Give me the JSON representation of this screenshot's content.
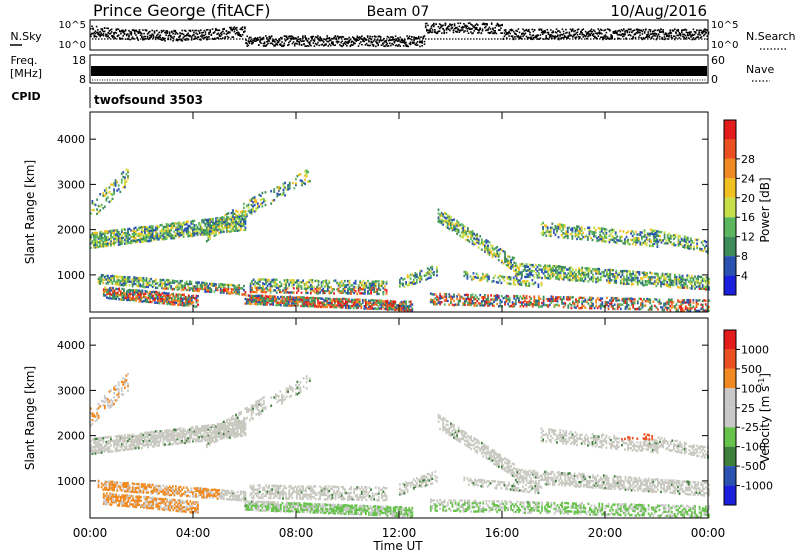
{
  "header": {
    "station": "Prince George (fitACF)",
    "beam": "Beam 07",
    "date": "10/Aug/2016"
  },
  "panels": {
    "nsky": {
      "left_label": "N.Sky",
      "right_label": "N.Search",
      "left_ticks": [
        "10^5",
        "10^0"
      ],
      "right_ticks": [
        "10^5",
        "10^0"
      ]
    },
    "freq": {
      "left_label_line1": "Freq.",
      "left_label_line2": "[MHz]",
      "right_label": "Nave",
      "left_ticks": [
        "18",
        "8"
      ],
      "right_ticks": [
        "60",
        "0"
      ]
    },
    "cpid": {
      "left_label": "CPID",
      "value": "twofsound 3503"
    }
  },
  "x_axis": {
    "title": "Time UT",
    "ticks": [
      "00:00",
      "04:00",
      "08:00",
      "12:00",
      "16:00",
      "20:00",
      "00:00"
    ]
  },
  "colors": {
    "power_scale": [
      "#1a20dc",
      "#2a52b0",
      "#3e8c5a",
      "#5cb65e",
      "#c7e04a",
      "#f0c020",
      "#ee8a20",
      "#ec5020",
      "#e41b1b"
    ],
    "velocity_scale": [
      "#1a20dc",
      "#2a52b0",
      "#3d7f3b",
      "#66c24a",
      "#c8c8c8",
      "#c8c8c8",
      "#f08a20",
      "#ec5020",
      "#e41b1b"
    ]
  },
  "chart_data": [
    {
      "type": "heatmap",
      "title": "",
      "xlabel": "Time UT",
      "ylabel": "Slant Range [km]",
      "xlim": [
        0,
        24
      ],
      "ylim": [
        180,
        4600
      ],
      "yticks": [
        "1000",
        "2000",
        "3000",
        "4000"
      ],
      "ytick_values": [
        1000,
        2000,
        3000,
        4000
      ],
      "colorbar": {
        "label": "Power [dB]",
        "ticks": [
          "4",
          "8",
          "12",
          "16",
          "20",
          "24",
          "28"
        ],
        "range": [
          0,
          30
        ]
      }
    },
    {
      "type": "heatmap",
      "title": "",
      "xlabel": "Time UT",
      "ylabel": "Slant Range [km]",
      "xlim": [
        0,
        24
      ],
      "ylim": [
        180,
        4600
      ],
      "yticks": [
        "1000",
        "2000",
        "3000",
        "4000"
      ],
      "ytick_values": [
        1000,
        2000,
        3000,
        4000
      ],
      "colorbar": {
        "label": "Velocity [m s",
        "label_sup": "-1",
        "label_end": "]",
        "ticks": [
          "1000",
          "500",
          "100",
          "25",
          "-25",
          "-100",
          "-500",
          "-1000"
        ],
        "range": [
          -1200,
          1200
        ]
      }
    }
  ]
}
